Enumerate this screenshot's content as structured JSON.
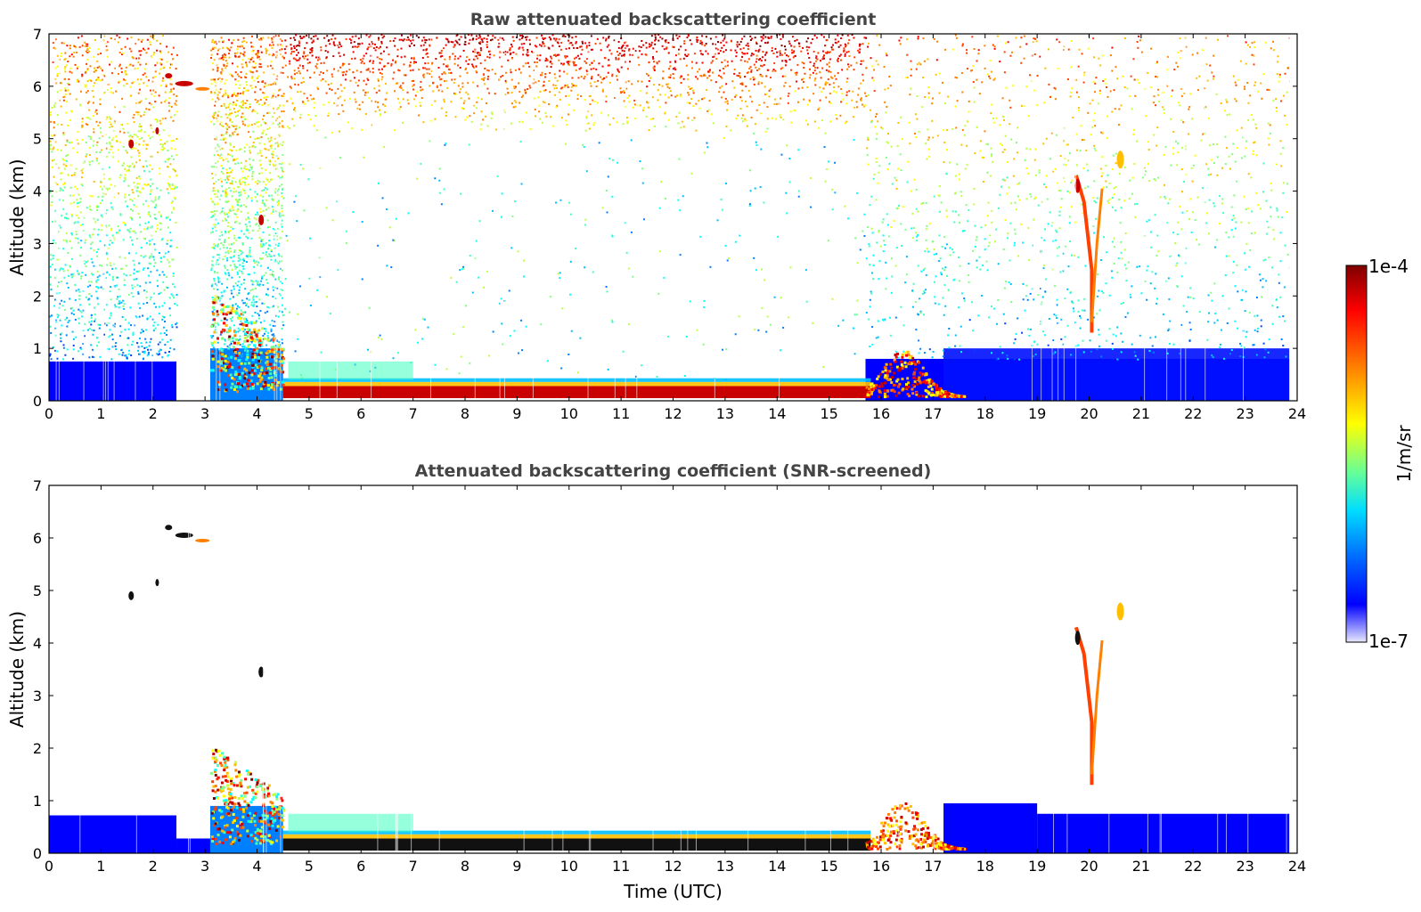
{
  "chart_data": [
    {
      "type": "heatmap",
      "title": "Raw attenuated backscattering coefficient",
      "xlabel": "",
      "ylabel": "Altitude (km)",
      "xlim": [
        0,
        24
      ],
      "ylim": [
        0,
        7
      ],
      "xticks": [
        0,
        1,
        2,
        3,
        4,
        5,
        6,
        7,
        8,
        9,
        10,
        11,
        12,
        13,
        14,
        15,
        16,
        17,
        18,
        19,
        20,
        21,
        22,
        23,
        24
      ],
      "yticks": [
        0,
        1,
        2,
        3,
        4,
        5,
        6,
        7
      ],
      "data_extent_x": [
        0,
        23.85
      ],
      "features": [
        {
          "name": "boundary layer",
          "x": [
            4.5,
            15.8
          ],
          "y": [
            0.05,
            0.3
          ]
        },
        {
          "name": "aerosol layer",
          "x": [
            15.6,
            17.6
          ],
          "y": [
            0.1,
            0.9
          ]
        },
        {
          "name": "low cloud",
          "x": [
            3.1,
            4.5
          ],
          "y": [
            0.0,
            2.0
          ]
        },
        {
          "name": "high cloud",
          "x": [
            2.3,
            3.1
          ],
          "y": [
            5.9,
            6.2
          ]
        },
        {
          "name": "cloud",
          "x": [
            19.7,
            20.3
          ],
          "y": [
            1.3,
            4.3
          ]
        },
        {
          "name": "cloud",
          "x": [
            20.5,
            20.7
          ],
          "y": [
            4.3,
            5.0
          ]
        }
      ]
    },
    {
      "type": "heatmap",
      "title": "Attenuated backscattering coefficient (SNR-screened)",
      "xlabel": "Time (UTC)",
      "ylabel": "Altitude (km)",
      "xlim": [
        0,
        24
      ],
      "ylim": [
        0,
        7
      ],
      "xticks": [
        0,
        1,
        2,
        3,
        4,
        5,
        6,
        7,
        8,
        9,
        10,
        11,
        12,
        13,
        14,
        15,
        16,
        17,
        18,
        19,
        20,
        21,
        22,
        23,
        24
      ],
      "yticks": [
        0,
        1,
        2,
        3,
        4,
        5,
        6,
        7
      ],
      "data_extent_x": [
        0,
        23.85
      ]
    }
  ],
  "colorbar": {
    "label": "1/m/sr",
    "max_label": "1e-4",
    "min_label": "1e-7",
    "colormap": "jet",
    "colors": [
      "#7f0000",
      "#ff0000",
      "#ff8000",
      "#ffff00",
      "#80ff80",
      "#00ffff",
      "#0080ff",
      "#0000ff",
      "#ddddff"
    ]
  }
}
